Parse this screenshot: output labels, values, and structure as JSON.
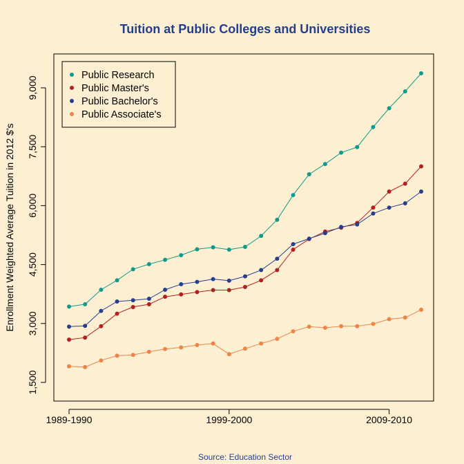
{
  "chart_data": {
    "type": "line",
    "title": "Tuition at Public Colleges and Universities",
    "xlabel": "",
    "ylabel": "Enrollment Weighted Average Tuition in 2012 $'s",
    "caption": "Source: Education Sector",
    "x": [
      "1989-1990",
      "1990-1991",
      "1991-1992",
      "1992-1993",
      "1993-1994",
      "1994-1995",
      "1995-1996",
      "1996-1997",
      "1997-1998",
      "1998-1999",
      "1999-2000",
      "2000-2001",
      "2001-2002",
      "2002-2003",
      "2003-2004",
      "2004-2005",
      "2005-2006",
      "2006-2007",
      "2007-2008",
      "2008-2009",
      "2009-2010",
      "2010-2011",
      "2011-2012"
    ],
    "x_tick_labels": [
      "1989-1990",
      "1999-2000",
      "2009-2010"
    ],
    "y_ticks": [
      1500,
      3000,
      4500,
      6000,
      7500,
      9000
    ],
    "y_tick_labels": [
      "1,500",
      "3,000",
      "4,500",
      "6,000",
      "7,500",
      "9,000"
    ],
    "ylim": [
      1350,
      9650
    ],
    "legend_position": "top-left",
    "grid": false,
    "series": [
      {
        "name": "Public Research",
        "color": "#0E9A8E",
        "values": [
          3430,
          3490,
          3860,
          4100,
          4380,
          4510,
          4620,
          4740,
          4890,
          4940,
          4880,
          4950,
          5230,
          5640,
          6270,
          6800,
          7060,
          7350,
          7490,
          8000,
          8480,
          8910,
          9370
        ]
      },
      {
        "name": "Public Master's",
        "color": "#B3201E",
        "values": [
          2590,
          2640,
          2930,
          3250,
          3420,
          3490,
          3680,
          3740,
          3800,
          3850,
          3850,
          3930,
          4100,
          4360,
          4880,
          5150,
          5340,
          5440,
          5560,
          5950,
          6360,
          6560,
          7000
        ]
      },
      {
        "name": "Public Bachelor's",
        "color": "#263E8F",
        "values": [
          2920,
          2940,
          3320,
          3560,
          3590,
          3630,
          3860,
          4000,
          4060,
          4130,
          4090,
          4200,
          4360,
          4650,
          5020,
          5160,
          5300,
          5460,
          5520,
          5800,
          5950,
          6060,
          6360
        ]
      },
      {
        "name": "Public Associate's",
        "color": "#EE8448",
        "values": [
          1910,
          1890,
          2060,
          2180,
          2200,
          2280,
          2350,
          2390,
          2450,
          2490,
          2220,
          2360,
          2490,
          2610,
          2800,
          2920,
          2890,
          2930,
          2930,
          2990,
          3110,
          3150,
          3350
        ]
      }
    ],
    "colors": {
      "title": "#243F8F",
      "caption": "#243F8F",
      "axis": "#000000",
      "background": "#FDEFD1"
    }
  }
}
